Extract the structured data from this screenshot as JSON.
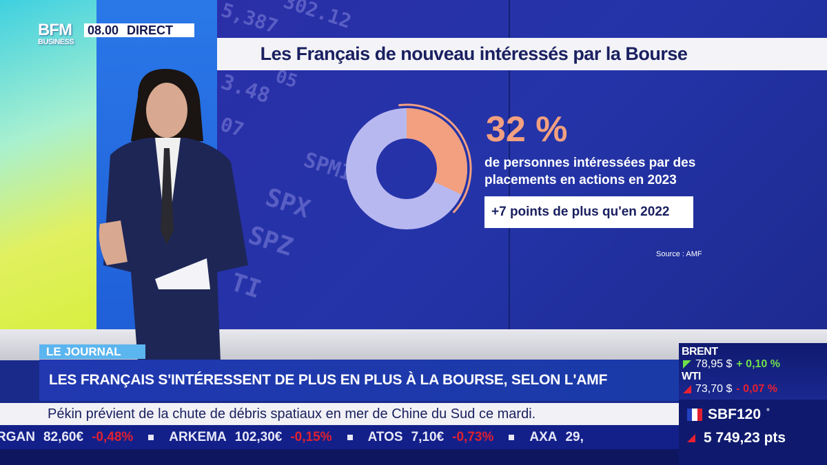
{
  "channel": {
    "logo_line1": "BFM",
    "logo_line2": "BUSINESS",
    "time": "08.00",
    "live_label": "DIRECT"
  },
  "background_tickers": [
    "5,387",
    "302.12",
    "3.48",
    "05",
    "07",
    "SPMI",
    "SPX",
    "SPZ",
    "TI"
  ],
  "graphic": {
    "title": "Les Français de nouveau intéressés par la Bourse",
    "percentage": "32 %",
    "percentage_value": 32,
    "description_line1": "de personnes intéressées par des",
    "description_line2": "placements en actions en 2023",
    "delta": "+7 points de plus qu'en 2022",
    "source": "Source : AMF",
    "colors": {
      "highlight": "#f2a080",
      "remainder": "#b8b8f0"
    }
  },
  "lower_third": {
    "tag": "LE JOURNAL",
    "headline": "LES FRANÇAIS S'INTÉRESSENT DE PLUS EN PLUS À LA BOURSE, SELON L'AMF",
    "subline": "Pékin prévient de la chute de débris spatiaux en mer de Chine du Sud ce mardi."
  },
  "ticker": [
    {
      "name": "RGAN",
      "price": "82,60€",
      "change": "-0,48%"
    },
    {
      "name": "ARKEMA",
      "price": "102,30€",
      "change": "-0,15%"
    },
    {
      "name": "ATOS",
      "price": "7,10€",
      "change": "-0,73%"
    },
    {
      "name": "AXA",
      "price": "29,",
      "change": ""
    }
  ],
  "markets": {
    "brent": {
      "name": "BRENT",
      "price": "78,95 $",
      "change": "+ 0,10 %",
      "direction": "up"
    },
    "wti": {
      "name": "WTI",
      "price": "73,70 $",
      "change": "- 0,07 %",
      "direction": "down"
    },
    "index": {
      "name": "SBF120",
      "marker": "°",
      "value": "5 749,23 pts",
      "direction": "up"
    }
  }
}
